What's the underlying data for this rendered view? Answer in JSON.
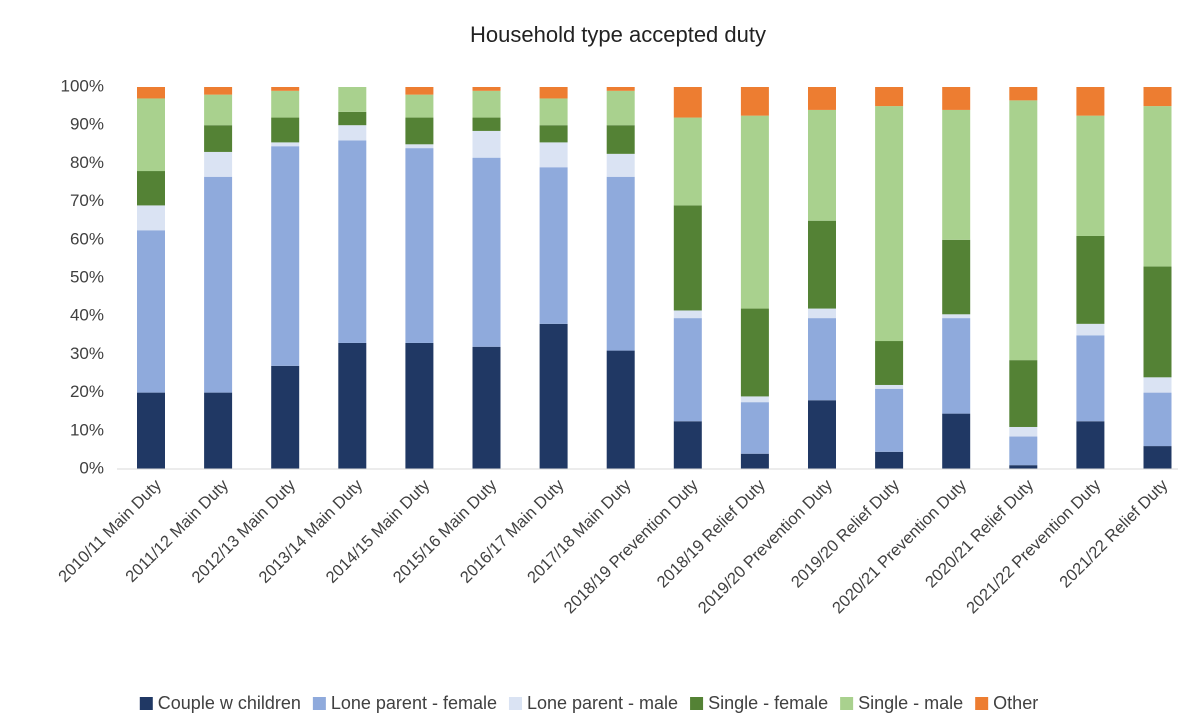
{
  "chart_data": {
    "type": "stacked_bar",
    "title": "Household type accepted duty",
    "categories": [
      "2010/11 Main Duty",
      "2011/12 Main Duty",
      "2012/13 Main Duty",
      "2013/14 Main Duty",
      "2014/15 Main Duty",
      "2015/16 Main Duty",
      "2016/17 Main Duty",
      "2017/18 Main Duty",
      "2018/19 Prevention Duty",
      "2018/19 Relief Duty",
      "2019/20 Prevention Duty",
      "2019/20 Relief Duty",
      "2020/21 Prevention Duty",
      "2020/21 Relief Duty",
      "2021/22 Prevention Duty",
      "2021/22 Relief Duty"
    ],
    "series": [
      {
        "name": "Couple w children",
        "color": "#203864",
        "values": [
          20,
          20,
          27,
          33,
          33,
          32,
          38,
          31,
          12.5,
          4,
          18,
          4.5,
          14.5,
          1,
          12.5,
          6
        ]
      },
      {
        "name": "Lone parent - female",
        "color": "#8faadc",
        "values": [
          42.5,
          56.5,
          57.5,
          53,
          51,
          49.5,
          41,
          45.5,
          27,
          13.5,
          21.5,
          16.5,
          25,
          7.5,
          22.5,
          14
        ]
      },
      {
        "name": "Lone parent - male",
        "color": "#dae3f3",
        "values": [
          6.5,
          6.5,
          1,
          4,
          1,
          7,
          6.5,
          6,
          2,
          1.5,
          2.5,
          1,
          1,
          2.5,
          3,
          4
        ]
      },
      {
        "name": "Single - female",
        "color": "#548235",
        "values": [
          9,
          7,
          6.5,
          3.5,
          7,
          3.5,
          4.5,
          7.5,
          27.5,
          23,
          23,
          11.5,
          19.5,
          17.5,
          23,
          29
        ]
      },
      {
        "name": "Single - male",
        "color": "#a9d18e",
        "values": [
          19,
          8,
          7,
          6.5,
          6,
          7,
          7,
          9,
          23,
          50.5,
          29,
          61.5,
          34,
          68,
          31.5,
          42
        ]
      },
      {
        "name": "Other",
        "color": "#ed7d31",
        "values": [
          3,
          2,
          1,
          0,
          2,
          1,
          3,
          1,
          8,
          7.5,
          6,
          5,
          6,
          3.5,
          7.5,
          5
        ]
      }
    ],
    "ylim": [
      0,
      100
    ],
    "yticks": [
      {
        "value": 0,
        "label": "0%"
      },
      {
        "value": 10,
        "label": "10%"
      },
      {
        "value": 20,
        "label": "20%"
      },
      {
        "value": 30,
        "label": "30%"
      },
      {
        "value": 40,
        "label": "40%"
      },
      {
        "value": 50,
        "label": "50%"
      },
      {
        "value": 60,
        "label": "60%"
      },
      {
        "value": 70,
        "label": "70%"
      },
      {
        "value": 80,
        "label": "80%"
      },
      {
        "value": 90,
        "label": "90%"
      },
      {
        "value": 100,
        "label": "100%"
      }
    ],
    "legend": "bottom"
  }
}
